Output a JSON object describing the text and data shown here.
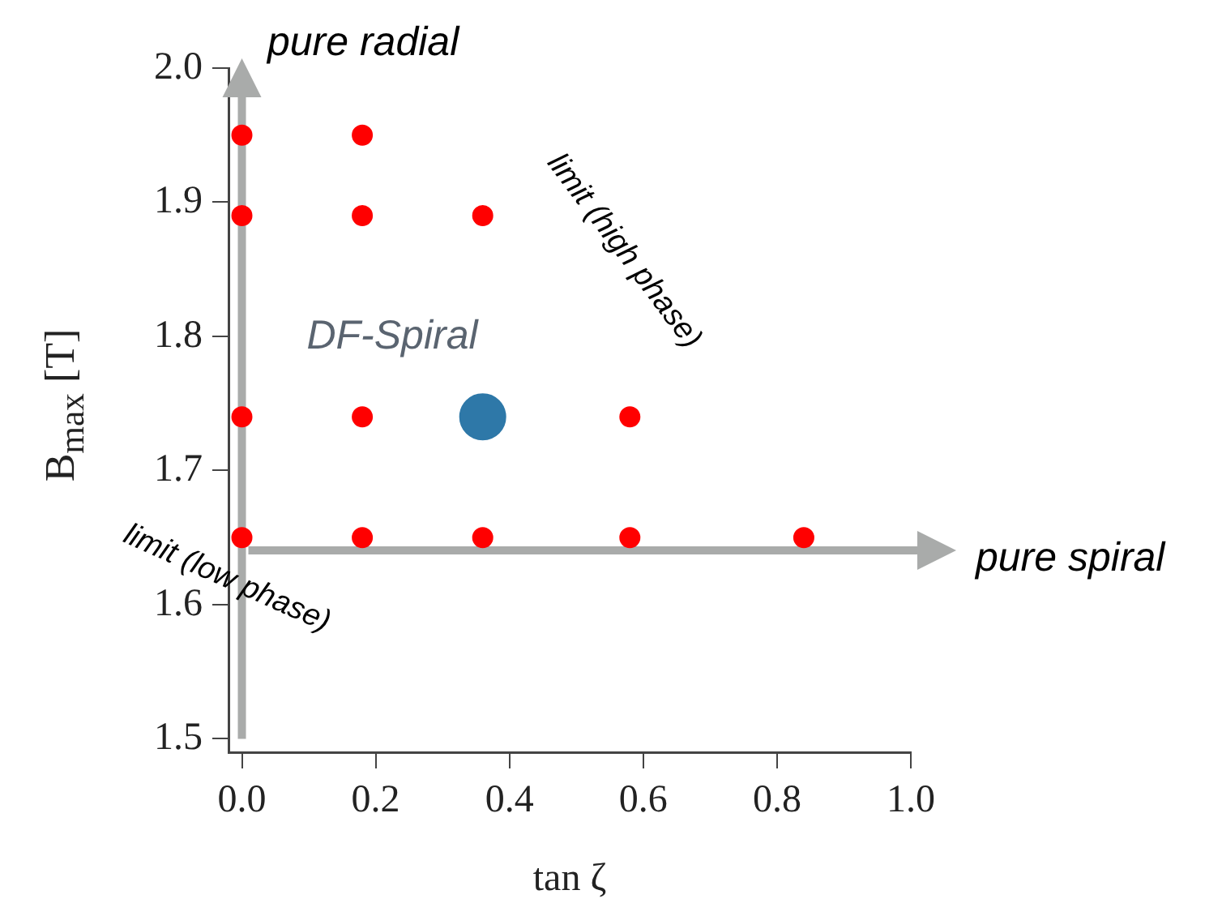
{
  "chart_data": {
    "type": "scatter",
    "xlabel": "tan ζ",
    "ylabel": "B$_{max}$ [T]",
    "xlim": [
      -0.02,
      1.0
    ],
    "xticks": [
      {
        "value": 0,
        "label": "0.0"
      },
      0.2,
      0.4,
      0.6,
      0.8,
      {
        "value": 1,
        "label": "1.0"
      }
    ],
    "ylim": [
      1.49,
      2.0
    ],
    "yticks": [
      1.5,
      1.6,
      1.7,
      1.8,
      1.9,
      {
        "value": 2,
        "label": "2.0"
      }
    ],
    "grid": false,
    "legend": false,
    "marker": "circle",
    "series": [
      {
        "color": "#ff0000",
        "x": [
          0,
          0.18,
          0,
          0.18,
          0.36,
          0,
          0.18,
          0.58,
          0,
          0.18,
          0.36,
          0.58,
          0.84
        ],
        "values": [
          1.95,
          1.95,
          1.89,
          1.89,
          1.89,
          1.74,
          1.74,
          1.74,
          1.65,
          1.65,
          1.65,
          1.65,
          1.65
        ]
      },
      {
        "color": "#2e78a8",
        "x": [
          0.36
        ],
        "values": [
          1.74
        ]
      }
    ],
    "annotations": [
      "pure radial",
      "limit (high phase)",
      "DF-Spiral",
      "pure spiral",
      "limit (low phase)"
    ]
  }
}
